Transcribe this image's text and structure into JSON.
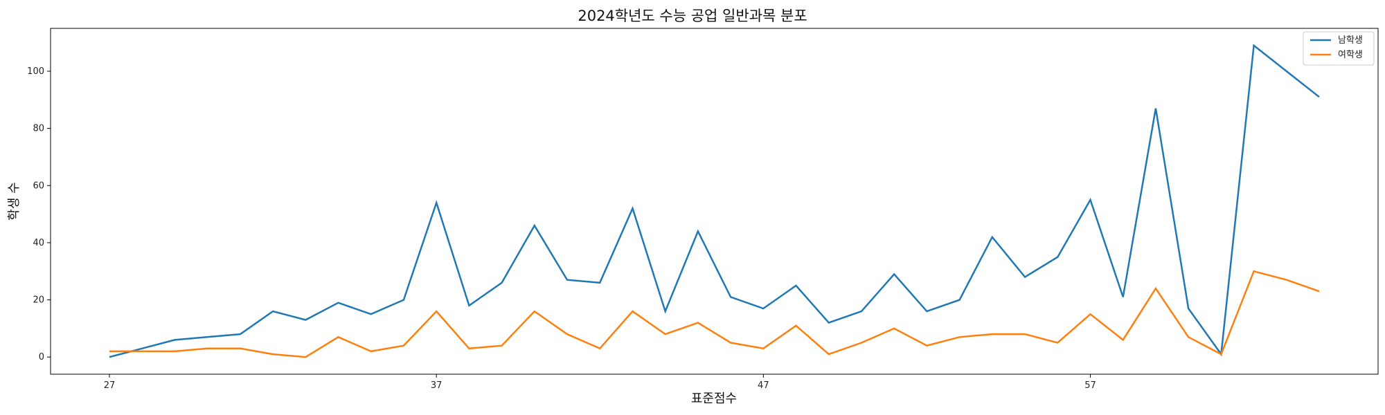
{
  "chart_data": {
    "type": "line",
    "title": "2024학년도 수능 공업 일반과목 분포",
    "xlabel": "표준점수",
    "ylabel": "학생 수",
    "x": [
      27,
      28,
      29,
      30,
      31,
      32,
      33,
      34,
      35,
      36,
      37,
      38,
      39,
      40,
      41,
      42,
      43,
      44,
      45,
      46,
      47,
      48,
      49,
      50,
      51,
      52,
      53,
      54,
      55,
      56,
      57,
      58,
      59,
      60,
      61,
      62,
      63,
      64
    ],
    "xticks": [
      27,
      37,
      47,
      57
    ],
    "yticks": [
      0,
      20,
      40,
      60,
      80,
      100
    ],
    "xlim": [
      25.2,
      65.8
    ],
    "ylim": [
      -6,
      115
    ],
    "grid": false,
    "legend_position": "top-right",
    "series": [
      {
        "name": "남학생",
        "color": "#1f77b4",
        "values": [
          0,
          3,
          6,
          7,
          8,
          16,
          13,
          19,
          15,
          20,
          54,
          18,
          26,
          46,
          27,
          26,
          52,
          16,
          44,
          21,
          17,
          25,
          12,
          16,
          29,
          16,
          20,
          42,
          28,
          35,
          55,
          21,
          87,
          17,
          1,
          109,
          100,
          91
        ]
      },
      {
        "name": "여학생",
        "color": "#ff7f0e",
        "values": [
          2,
          2,
          2,
          3,
          3,
          1,
          0,
          7,
          2,
          4,
          16,
          3,
          4,
          16,
          8,
          3,
          16,
          8,
          12,
          5,
          3,
          11,
          1,
          5,
          10,
          4,
          7,
          8,
          8,
          5,
          15,
          6,
          24,
          7,
          1,
          30,
          27,
          23
        ]
      }
    ]
  }
}
